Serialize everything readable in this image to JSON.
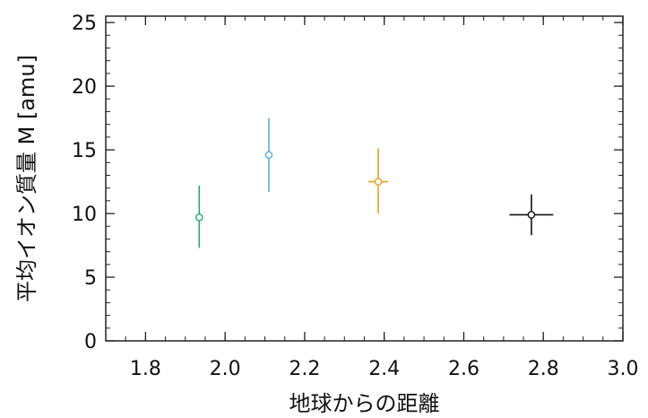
{
  "chart_data": {
    "type": "scatter",
    "title": "",
    "xlabel": "地球からの距離",
    "ylabel": "平均イオン質量 M [amu]",
    "xlim": [
      1.7,
      3.0
    ],
    "ylim": [
      0,
      25.5
    ],
    "x_ticks": [
      1.8,
      2.0,
      2.2,
      2.4,
      2.6,
      2.8,
      3.0
    ],
    "x_tick_labels": [
      "1.8",
      "2.0",
      "2.2",
      "2.4",
      "2.6",
      "2.8",
      "3.0"
    ],
    "y_ticks": [
      0,
      5,
      10,
      15,
      20,
      25
    ],
    "y_tick_labels": [
      "0",
      "5",
      "10",
      "15",
      "20",
      "25"
    ],
    "x_minor_step": 0.05,
    "y_minor_step": 1,
    "grid": false,
    "legend": "none",
    "points": [
      {
        "x": 1.935,
        "y": 9.7,
        "yerr_low": 7.3,
        "yerr_high": 12.2,
        "xerr": 0.005,
        "color": "#2aa870"
      },
      {
        "x": 2.11,
        "y": 14.6,
        "yerr_low": 11.7,
        "yerr_high": 17.5,
        "xerr": 0.005,
        "color": "#5aaee0"
      },
      {
        "x": 2.385,
        "y": 12.5,
        "yerr_low": 10.0,
        "yerr_high": 15.1,
        "xerr": 0.025,
        "color": "#e8a020"
      },
      {
        "x": 2.77,
        "y": 9.9,
        "yerr_low": 8.3,
        "yerr_high": 11.5,
        "xerr": 0.055,
        "color": "#111111"
      }
    ]
  }
}
